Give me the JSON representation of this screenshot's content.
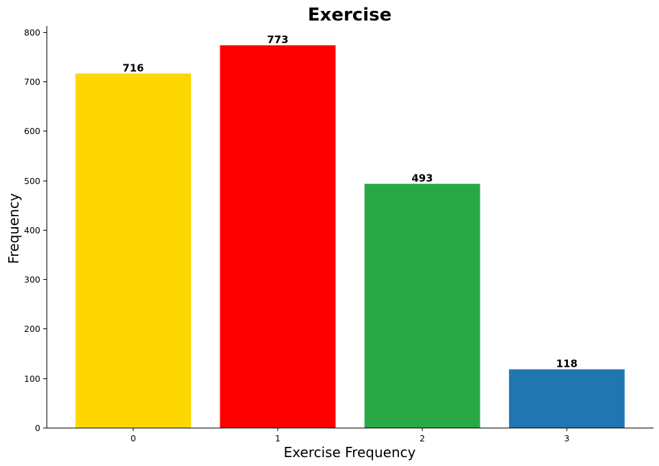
{
  "chart_data": {
    "type": "bar",
    "title": "Exercise",
    "xlabel": "Exercise Frequency",
    "ylabel": "Frequency",
    "categories": [
      "0",
      "1",
      "2",
      "3"
    ],
    "values": [
      716,
      773,
      493,
      118
    ],
    "data_labels": [
      "716",
      "773",
      "493",
      "118"
    ],
    "colors": [
      "#FFD700",
      "#FF0000",
      "#2AA845",
      "#2176B2"
    ],
    "ylim": [
      0,
      812
    ],
    "yticks": [
      0,
      100,
      200,
      300,
      400,
      500,
      600,
      700,
      800
    ],
    "grid": false,
    "legend": "none"
  }
}
